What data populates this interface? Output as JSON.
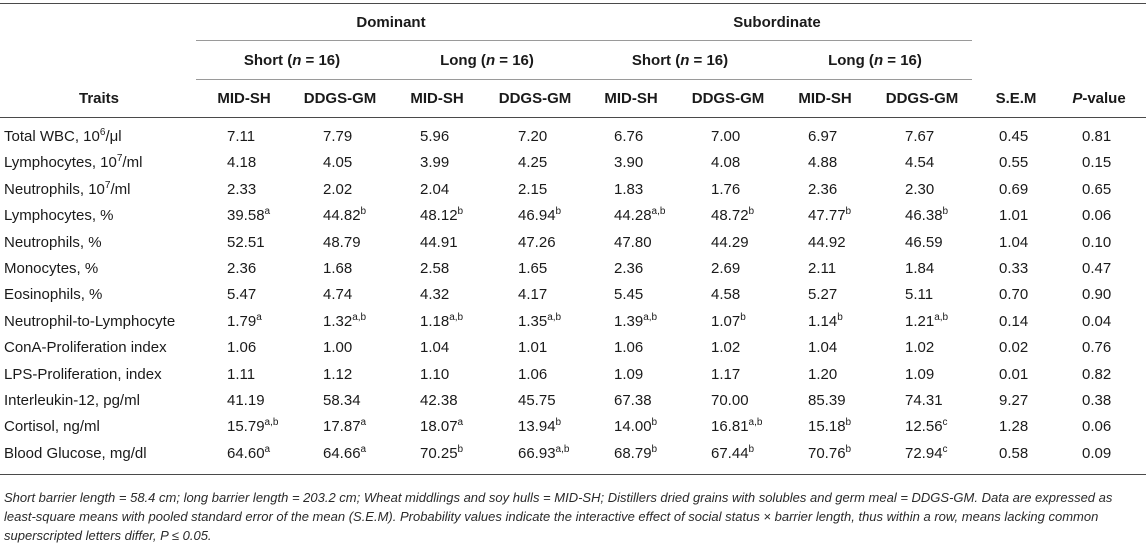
{
  "header": {
    "group_dominant": "Dominant",
    "group_subordinate": "Subordinate",
    "short_label": "Short (",
    "long_label": "Long (",
    "n_var": "n",
    "n_value": " = 16)",
    "traits": "Traits",
    "mid_sh": "MID-SH",
    "ddgs_gm": "DDGS-GM",
    "sem": "S.E.M",
    "p_italic": "P",
    "p_rest": "-value"
  },
  "rows": [
    {
      "trait": "Total WBC, 10",
      "trait_sup": "6",
      "trait_tail": "/μl",
      "values": [
        "7.11",
        "7.79",
        "5.96",
        "7.20",
        "6.76",
        "7.00",
        "6.97",
        "7.67",
        "0.45",
        "0.81"
      ],
      "sups": [
        "",
        "",
        "",
        "",
        "",
        "",
        "",
        "",
        "",
        ""
      ]
    },
    {
      "trait": "Lymphocytes, 10",
      "trait_sup": "7",
      "trait_tail": "/ml",
      "values": [
        "4.18",
        "4.05",
        "3.99",
        "4.25",
        "3.90",
        "4.08",
        "4.88",
        "4.54",
        "0.55",
        "0.15"
      ],
      "sups": [
        "",
        "",
        "",
        "",
        "",
        "",
        "",
        "",
        "",
        ""
      ]
    },
    {
      "trait": "Neutrophils, 10",
      "trait_sup": "7",
      "trait_tail": "/ml",
      "values": [
        "2.33",
        "2.02",
        "2.04",
        "2.15",
        "1.83",
        "1.76",
        "2.36",
        "2.30",
        "0.69",
        "0.65"
      ],
      "sups": [
        "",
        "",
        "",
        "",
        "",
        "",
        "",
        "",
        "",
        ""
      ]
    },
    {
      "trait": "Lymphocytes, %",
      "trait_sup": "",
      "trait_tail": "",
      "values": [
        "39.58",
        "44.82",
        "48.12",
        "46.94",
        "44.28",
        "48.72",
        "47.77",
        "46.38",
        "1.01",
        "0.06"
      ],
      "sups": [
        "a",
        "b",
        "b",
        "b",
        "a,b",
        "b",
        "b",
        "b",
        "",
        ""
      ]
    },
    {
      "trait": "Neutrophils, %",
      "trait_sup": "",
      "trait_tail": "",
      "values": [
        "52.51",
        "48.79",
        "44.91",
        "47.26",
        "47.80",
        "44.29",
        "44.92",
        "46.59",
        "1.04",
        "0.10"
      ],
      "sups": [
        "",
        "",
        "",
        "",
        "",
        "",
        "",
        "",
        "",
        ""
      ]
    },
    {
      "trait": "Monocytes, %",
      "trait_sup": "",
      "trait_tail": "",
      "values": [
        "2.36",
        "1.68",
        "2.58",
        "1.65",
        "2.36",
        "2.69",
        "2.11",
        "1.84",
        "0.33",
        "0.47"
      ],
      "sups": [
        "",
        "",
        "",
        "",
        "",
        "",
        "",
        "",
        "",
        ""
      ]
    },
    {
      "trait": "Eosinophils, %",
      "trait_sup": "",
      "trait_tail": "",
      "values": [
        "5.47",
        "4.74",
        "4.32",
        "4.17",
        "5.45",
        "4.58",
        "5.27",
        "5.11",
        "0.70",
        "0.90"
      ],
      "sups": [
        "",
        "",
        "",
        "",
        "",
        "",
        "",
        "",
        "",
        ""
      ]
    },
    {
      "trait": "Neutrophil-to-Lymphocyte",
      "trait_sup": "",
      "trait_tail": "",
      "values": [
        "1.79",
        "1.32",
        "1.18",
        "1.35",
        "1.39",
        "1.07",
        "1.14",
        "1.21",
        "0.14",
        "0.04"
      ],
      "sups": [
        "a",
        "a,b",
        "a,b",
        "a,b",
        "a,b",
        "b",
        "b",
        "a,b",
        "",
        ""
      ]
    },
    {
      "trait": "ConA-Proliferation index",
      "trait_sup": "",
      "trait_tail": "",
      "values": [
        "1.06",
        "1.00",
        "1.04",
        "1.01",
        "1.06",
        "1.02",
        "1.04",
        "1.02",
        "0.02",
        "0.76"
      ],
      "sups": [
        "",
        "",
        "",
        "",
        "",
        "",
        "",
        "",
        "",
        ""
      ]
    },
    {
      "trait": "LPS-Proliferation, index",
      "trait_sup": "",
      "trait_tail": "",
      "values": [
        "1.11",
        "1.12",
        "1.10",
        "1.06",
        "1.09",
        "1.17",
        "1.20",
        "1.09",
        "0.01",
        "0.82"
      ],
      "sups": [
        "",
        "",
        "",
        "",
        "",
        "",
        "",
        "",
        "",
        ""
      ]
    },
    {
      "trait": "Interleukin-12, pg/ml",
      "trait_sup": "",
      "trait_tail": "",
      "values": [
        "41.19",
        "58.34",
        "42.38",
        "45.75",
        "67.38",
        "70.00",
        "85.39",
        "74.31",
        "9.27",
        "0.38"
      ],
      "sups": [
        "",
        "",
        "",
        "",
        "",
        "",
        "",
        "",
        "",
        ""
      ]
    },
    {
      "trait": "Cortisol, ng/ml",
      "trait_sup": "",
      "trait_tail": "",
      "values": [
        "15.79",
        "17.87",
        "18.07",
        "13.94",
        "14.00",
        "16.81",
        "15.18",
        "12.56",
        "1.28",
        "0.06"
      ],
      "sups": [
        "a,b",
        "a",
        "a",
        "b",
        "b",
        "a,b",
        "b",
        "c",
        "",
        ""
      ]
    },
    {
      "trait": "Blood Glucose, mg/dl",
      "trait_sup": "",
      "trait_tail": "",
      "values": [
        "64.60",
        "64.66",
        "70.25",
        "66.93",
        "68.79",
        "67.44",
        "70.76",
        "72.94",
        "0.58",
        "0.09"
      ],
      "sups": [
        "a",
        "a",
        "b",
        "a,b",
        "b",
        "b",
        "b",
        "c",
        "",
        ""
      ]
    }
  ],
  "footnote": "Short barrier length = 58.4 cm; long barrier length = 203.2 cm; Wheat middlings and soy hulls = MID-SH; Distillers dried grains with solubles and germ meal = DDGS-GM. Data are expressed as least-square means with pooled standard error of the mean (S.E.M). Probability values indicate the interactive effect of social status × barrier length, thus within a row, means lacking common superscripted letters differ, P ≤ 0.05."
}
